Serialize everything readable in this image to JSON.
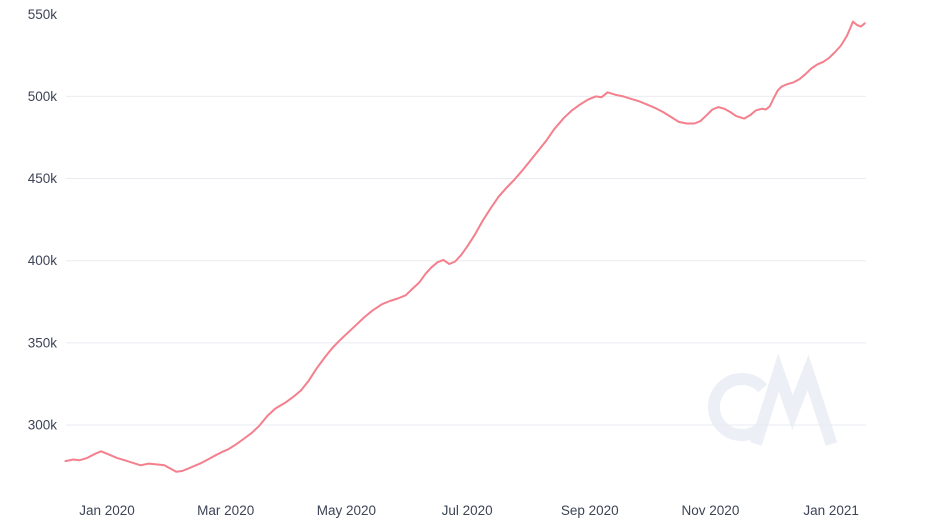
{
  "colors": {
    "line": "#f47f8d",
    "grid": "#e9ebf0",
    "text": "#3d4456",
    "watermark": "#edeff7",
    "background": "#ffffff"
  },
  "watermark": {
    "text": "CM"
  },
  "chart_data": {
    "type": "line",
    "grid": "horizontal",
    "legend": "none",
    "x_axis": {
      "ticks": [
        {
          "label": "Jan 2020",
          "date": "2020-01-01"
        },
        {
          "label": "Mar 2020",
          "date": "2020-03-01"
        },
        {
          "label": "May 2020",
          "date": "2020-05-01"
        },
        {
          "label": "Jul 2020",
          "date": "2020-07-01"
        },
        {
          "label": "Sep 2020",
          "date": "2020-09-01"
        },
        {
          "label": "Nov 2020",
          "date": "2020-11-01"
        },
        {
          "label": "Jan 2021",
          "date": "2021-01-01"
        }
      ]
    },
    "y_axis": {
      "ticks": [
        {
          "label": "300k",
          "value": 300000,
          "gridline": true
        },
        {
          "label": "350k",
          "value": 350000,
          "gridline": true
        },
        {
          "label": "400k",
          "value": 400000,
          "gridline": true
        },
        {
          "label": "450k",
          "value": 450000,
          "gridline": true
        },
        {
          "label": "500k",
          "value": 500000,
          "gridline": true
        },
        {
          "label": "550k",
          "value": 550000,
          "gridline": false
        }
      ],
      "ylim": [
        270000,
        550000
      ]
    },
    "series": [
      {
        "name": "value",
        "points": [
          [
            "2019-12-11",
            278000
          ],
          [
            "2019-12-15",
            279000
          ],
          [
            "2019-12-18",
            278500
          ],
          [
            "2019-12-22",
            280000
          ],
          [
            "2019-12-26",
            282500
          ],
          [
            "2019-12-29",
            284000
          ],
          [
            "2020-01-02",
            282000
          ],
          [
            "2020-01-06",
            280000
          ],
          [
            "2020-01-10",
            278500
          ],
          [
            "2020-01-14",
            277000
          ],
          [
            "2020-01-18",
            275500
          ],
          [
            "2020-01-22",
            276500
          ],
          [
            "2020-01-26",
            276000
          ],
          [
            "2020-01-30",
            275500
          ],
          [
            "2020-02-02",
            273500
          ],
          [
            "2020-02-05",
            271500
          ],
          [
            "2020-02-08",
            272000
          ],
          [
            "2020-02-13",
            274500
          ],
          [
            "2020-02-17",
            276500
          ],
          [
            "2020-02-21",
            279000
          ],
          [
            "2020-02-24",
            281000
          ],
          [
            "2020-02-28",
            283500
          ],
          [
            "2020-03-02",
            285000
          ],
          [
            "2020-03-06",
            288000
          ],
          [
            "2020-03-10",
            291500
          ],
          [
            "2020-03-14",
            295000
          ],
          [
            "2020-03-18",
            299500
          ],
          [
            "2020-03-22",
            305500
          ],
          [
            "2020-03-26",
            310000
          ],
          [
            "2020-03-31",
            313500
          ],
          [
            "2020-04-04",
            317000
          ],
          [
            "2020-04-08",
            321000
          ],
          [
            "2020-04-12",
            327000
          ],
          [
            "2020-04-16",
            334500
          ],
          [
            "2020-04-20",
            341000
          ],
          [
            "2020-04-24",
            347000
          ],
          [
            "2020-04-28",
            352000
          ],
          [
            "2020-05-02",
            356500
          ],
          [
            "2020-05-06",
            361000
          ],
          [
            "2020-05-10",
            365500
          ],
          [
            "2020-05-14",
            369500
          ],
          [
            "2020-05-19",
            373500
          ],
          [
            "2020-05-23",
            375500
          ],
          [
            "2020-05-27",
            377000
          ],
          [
            "2020-05-31",
            379000
          ],
          [
            "2020-06-03",
            382500
          ],
          [
            "2020-06-07",
            387000
          ],
          [
            "2020-06-10",
            392000
          ],
          [
            "2020-06-13",
            396000
          ],
          [
            "2020-06-16",
            399000
          ],
          [
            "2020-06-19",
            400500
          ],
          [
            "2020-06-22",
            398000
          ],
          [
            "2020-06-25",
            399500
          ],
          [
            "2020-06-28",
            403500
          ],
          [
            "2020-07-01",
            408500
          ],
          [
            "2020-07-05",
            416000
          ],
          [
            "2020-07-09",
            424500
          ],
          [
            "2020-07-13",
            432000
          ],
          [
            "2020-07-17",
            439000
          ],
          [
            "2020-07-21",
            444500
          ],
          [
            "2020-07-25",
            449500
          ],
          [
            "2020-07-29",
            455000
          ],
          [
            "2020-08-02",
            461000
          ],
          [
            "2020-08-06",
            467000
          ],
          [
            "2020-08-10",
            473000
          ],
          [
            "2020-08-14",
            480000
          ],
          [
            "2020-08-19",
            487000
          ],
          [
            "2020-08-23",
            491500
          ],
          [
            "2020-08-27",
            495000
          ],
          [
            "2020-08-31",
            498000
          ],
          [
            "2020-09-04",
            500000
          ],
          [
            "2020-09-07",
            499500
          ],
          [
            "2020-09-10",
            502500
          ],
          [
            "2020-09-14",
            501000
          ],
          [
            "2020-09-18",
            500000
          ],
          [
            "2020-09-22",
            498500
          ],
          [
            "2020-09-26",
            497000
          ],
          [
            "2020-09-30",
            495000
          ],
          [
            "2020-10-04",
            493000
          ],
          [
            "2020-10-08",
            490500
          ],
          [
            "2020-10-12",
            487500
          ],
          [
            "2020-10-16",
            484500
          ],
          [
            "2020-10-20",
            483500
          ],
          [
            "2020-10-24",
            483500
          ],
          [
            "2020-10-27",
            485000
          ],
          [
            "2020-10-30",
            488500
          ],
          [
            "2020-11-02",
            492000
          ],
          [
            "2020-11-05",
            493500
          ],
          [
            "2020-11-08",
            492500
          ],
          [
            "2020-11-11",
            490500
          ],
          [
            "2020-11-14",
            488000
          ],
          [
            "2020-11-18",
            486500
          ],
          [
            "2020-11-21",
            488500
          ],
          [
            "2020-11-24",
            491500
          ],
          [
            "2020-11-27",
            492500
          ],
          [
            "2020-11-29",
            492000
          ],
          [
            "2020-12-01",
            494000
          ],
          [
            "2020-12-03",
            499000
          ],
          [
            "2020-12-05",
            503500
          ],
          [
            "2020-12-07",
            506000
          ],
          [
            "2020-12-10",
            507500
          ],
          [
            "2020-12-13",
            508500
          ],
          [
            "2020-12-16",
            510500
          ],
          [
            "2020-12-19",
            513500
          ],
          [
            "2020-12-22",
            517000
          ],
          [
            "2020-12-25",
            519500
          ],
          [
            "2020-12-28",
            521000
          ],
          [
            "2020-12-31",
            523500
          ],
          [
            "2021-01-03",
            527000
          ],
          [
            "2021-01-06",
            531000
          ],
          [
            "2021-01-09",
            537000
          ],
          [
            "2021-01-11",
            542500
          ],
          [
            "2021-01-12",
            545500
          ],
          [
            "2021-01-14",
            543500
          ],
          [
            "2021-01-16",
            542500
          ],
          [
            "2021-01-18",
            544500
          ]
        ]
      }
    ]
  }
}
